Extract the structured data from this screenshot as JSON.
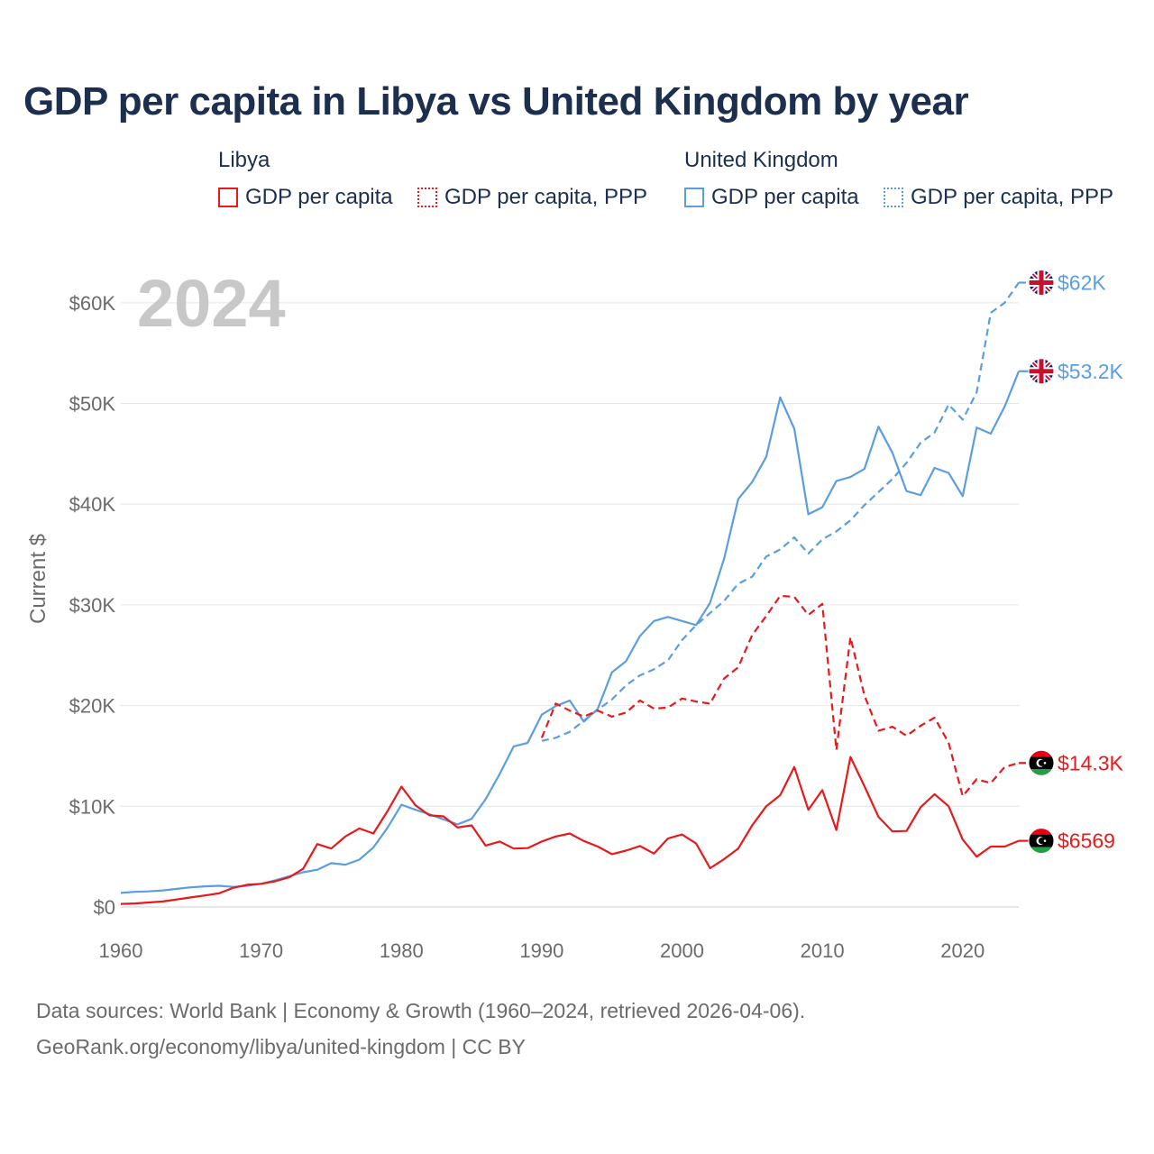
{
  "title": "GDP per capita in Libya vs United Kingdom by year",
  "legend": {
    "groups": [
      {
        "name": "Libya",
        "items": [
          "GDP per capita",
          "GDP per capita, PPP"
        ],
        "color": "#e8191a"
      },
      {
        "name": "United Kingdom",
        "items": [
          "GDP per capita",
          "GDP per capita, PPP"
        ],
        "color": "#5b9ee0"
      }
    ]
  },
  "footer": {
    "line1": "Data sources: World Bank | Economy & Growth (1960–2024, retrieved 2026-04-06).",
    "line2": "GeoRank.org/economy/libya/united-kingdom | CC BY"
  },
  "chart_data": {
    "type": "line",
    "title": "GDP per capita in Libya vs United Kingdom by year",
    "year_label": "2024",
    "ylabel": "Current $",
    "xlabel": "",
    "xlim": [
      1960,
      2024
    ],
    "ylim": [
      0,
      65000
    ],
    "x_ticks": [
      1960,
      1970,
      1980,
      1990,
      2000,
      2010,
      2020
    ],
    "x_tick_labels": [
      "1960",
      "1970",
      "1980",
      "1990",
      "2000",
      "2010",
      "2020"
    ],
    "y_ticks": [
      0,
      10000,
      20000,
      30000,
      40000,
      50000,
      60000
    ],
    "y_tick_labels": [
      "$0",
      "$10K",
      "$20K",
      "$30K",
      "$40K",
      "$50K",
      "$60K"
    ],
    "series": [
      {
        "name": "United Kingdom GDP per capita",
        "country": "United Kingdom",
        "style": "solid",
        "color": "#5b9ee0",
        "end_label": "$53.2K",
        "x": [
          1960,
          1961,
          1962,
          1963,
          1964,
          1965,
          1966,
          1967,
          1968,
          1969,
          1970,
          1971,
          1972,
          1973,
          1974,
          1975,
          1976,
          1977,
          1978,
          1979,
          1980,
          1981,
          1982,
          1983,
          1984,
          1985,
          1986,
          1987,
          1988,
          1989,
          1990,
          1991,
          1992,
          1993,
          1994,
          1995,
          1996,
          1997,
          1998,
          1999,
          2000,
          2001,
          2002,
          2003,
          2004,
          2005,
          2006,
          2007,
          2008,
          2009,
          2010,
          2011,
          2012,
          2013,
          2014,
          2015,
          2016,
          2017,
          2018,
          2019,
          2020,
          2021,
          2022,
          2023,
          2024
        ],
        "values": [
          1400,
          1500,
          1550,
          1650,
          1800,
          1950,
          2050,
          2100,
          2000,
          2100,
          2300,
          2650,
          3050,
          3450,
          3700,
          4350,
          4200,
          4700,
          5900,
          7850,
          10150,
          9650,
          9200,
          8700,
          8200,
          8750,
          10700,
          13200,
          15950,
          16300,
          19100,
          19950,
          20500,
          18400,
          19700,
          23300,
          24400,
          26900,
          28400,
          28800,
          28400,
          28000,
          30200,
          34600,
          40500,
          42200,
          44700,
          50600,
          47500,
          39000,
          39700,
          42300,
          42700,
          43500,
          47700,
          45100,
          41300,
          40900,
          43600,
          43100,
          40800,
          47600,
          47000,
          49700,
          53200
        ]
      },
      {
        "name": "United Kingdom GDP per capita, PPP",
        "country": "United Kingdom",
        "style": "dashed",
        "color": "#5b9ee0",
        "end_label": "$62K",
        "x": [
          1990,
          1991,
          1992,
          1993,
          1994,
          1995,
          1996,
          1997,
          1998,
          1999,
          2000,
          2001,
          2002,
          2003,
          2004,
          2005,
          2006,
          2007,
          2008,
          2009,
          2010,
          2011,
          2012,
          2013,
          2014,
          2015,
          2016,
          2017,
          2018,
          2019,
          2020,
          2021,
          2022,
          2023,
          2024
        ],
        "values": [
          16500,
          16800,
          17400,
          18500,
          19600,
          20600,
          22000,
          23000,
          23600,
          24500,
          26500,
          28000,
          29200,
          30400,
          32100,
          32800,
          34800,
          35500,
          36700,
          35100,
          36500,
          37300,
          38400,
          39900,
          41200,
          42500,
          44100,
          46100,
          47100,
          49900,
          48400,
          51100,
          59000,
          60000,
          62000
        ]
      },
      {
        "name": "Libya GDP per capita",
        "country": "Libya",
        "style": "solid",
        "color": "#e8191a",
        "end_label": "$6569",
        "x": [
          1960,
          1961,
          1962,
          1963,
          1964,
          1965,
          1966,
          1967,
          1968,
          1969,
          1970,
          1971,
          1972,
          1973,
          1974,
          1975,
          1976,
          1977,
          1978,
          1979,
          1980,
          1981,
          1982,
          1983,
          1984,
          1985,
          1986,
          1987,
          1988,
          1989,
          1990,
          1991,
          1992,
          1993,
          1994,
          1995,
          1996,
          1997,
          1998,
          1999,
          2000,
          2001,
          2002,
          2003,
          2004,
          2005,
          2006,
          2007,
          2008,
          2009,
          2010,
          2011,
          2012,
          2013,
          2014,
          2015,
          2016,
          2017,
          2018,
          2019,
          2020,
          2021,
          2022,
          2023,
          2024
        ],
        "values": [
          300,
          350,
          450,
          550,
          750,
          950,
          1150,
          1350,
          1900,
          2200,
          2300,
          2550,
          2950,
          3800,
          6250,
          5800,
          7000,
          7800,
          7300,
          9500,
          11950,
          10100,
          9100,
          9000,
          7900,
          8100,
          6100,
          6500,
          5800,
          5850,
          6500,
          7000,
          7300,
          6550,
          6000,
          5250,
          5600,
          6050,
          5300,
          6800,
          7200,
          6300,
          3850,
          4750,
          5800,
          8100,
          10000,
          11100,
          13900,
          9650,
          11600,
          7650,
          14900,
          12000,
          8950,
          7500,
          7550,
          9900,
          11200,
          10000,
          6700,
          5000,
          6000,
          6000,
          6569
        ]
      },
      {
        "name": "Libya GDP per capita, PPP",
        "country": "Libya",
        "style": "dashed",
        "color": "#e8191a",
        "end_label": "$14.3K",
        "x": [
          1990,
          1991,
          1992,
          1993,
          1994,
          1995,
          1996,
          1997,
          1998,
          1999,
          2000,
          2001,
          2002,
          2003,
          2004,
          2005,
          2006,
          2007,
          2008,
          2009,
          2010,
          2011,
          2012,
          2013,
          2014,
          2015,
          2016,
          2017,
          2018,
          2019,
          2020,
          2021,
          2022,
          2023,
          2024
        ],
        "values": [
          16800,
          20200,
          19500,
          18900,
          19500,
          18900,
          19300,
          20500,
          19700,
          19800,
          20700,
          20400,
          20200,
          22700,
          23800,
          27000,
          28900,
          30900,
          30800,
          29000,
          30100,
          15600,
          26800,
          21000,
          17500,
          17900,
          17000,
          18000,
          18800,
          16300,
          11000,
          12700,
          12300,
          13900,
          14300
        ]
      }
    ]
  }
}
